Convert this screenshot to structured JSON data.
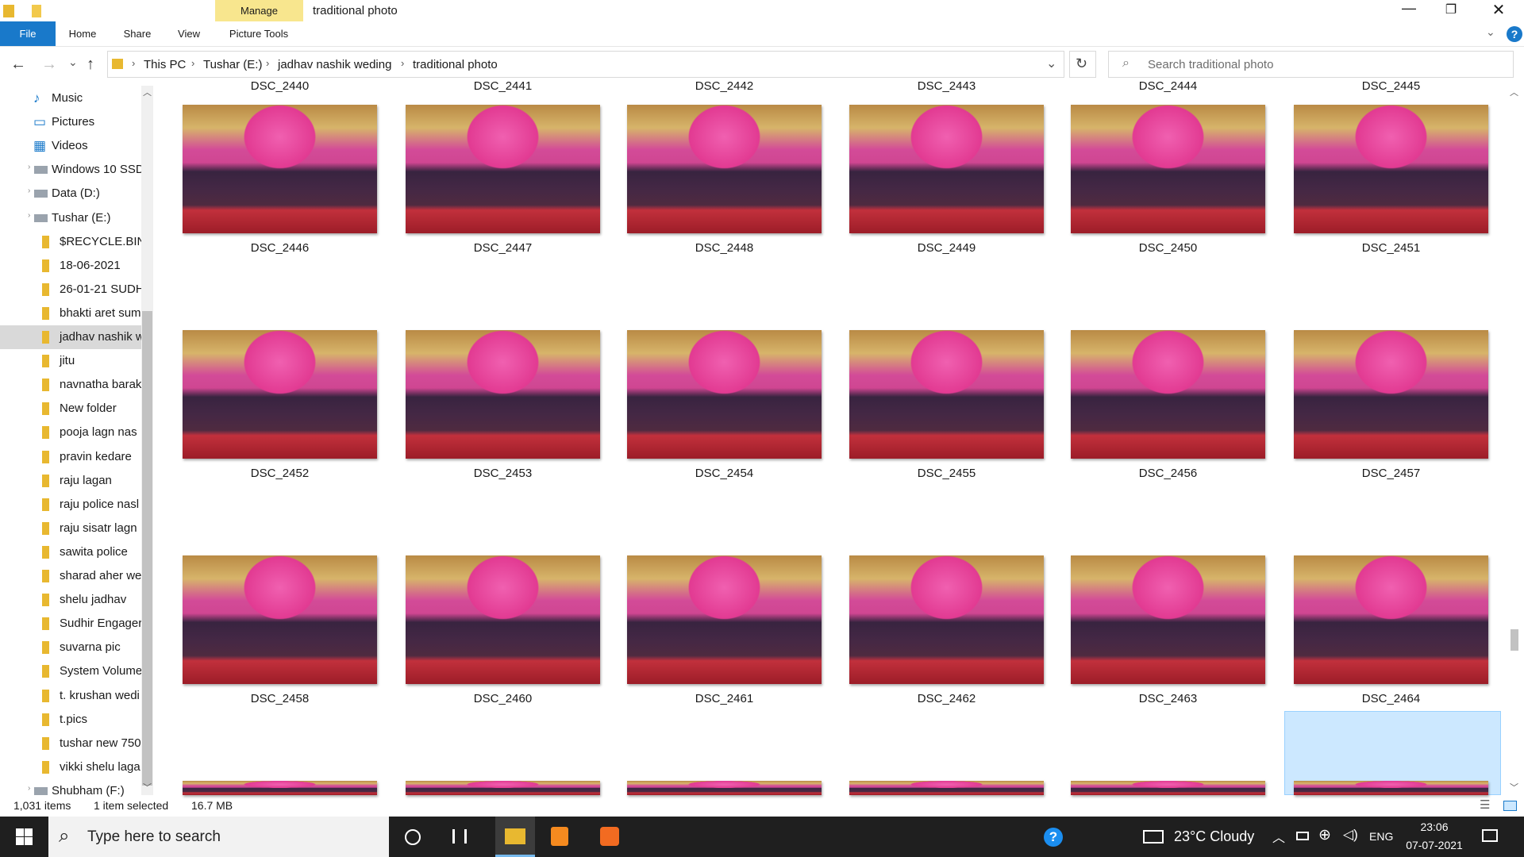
{
  "title_bar": {
    "manage": "Manage",
    "title": "traditional photo"
  },
  "ribbon": {
    "tabs": [
      "File",
      "Home",
      "Share",
      "View",
      "Picture Tools"
    ]
  },
  "address": {
    "crumbs": [
      "This PC",
      "Tushar (E:)",
      "jadhav nashik weding",
      "traditional photo"
    ],
    "search": "Search traditional photo"
  },
  "nav": [
    "Music",
    "Pictures",
    "Videos",
    "Windows 10 SSD",
    "Data (D:)",
    "Tushar (E:)",
    "$RECYCLE.BIN",
    "18-06-2021",
    "26-01-21 SUDH",
    "bhakti aret sum",
    "jadhav nashik w",
    "jitu",
    "navnatha barak",
    "New folder",
    "pooja lagn nas",
    "pravin kedare",
    "raju lagan",
    "raju police nasl",
    "raju sisatr lagn",
    "sawita police",
    "sharad aher we",
    "shelu jadhav",
    "Sudhir Engager",
    "suvarna pic",
    "System Volume",
    "t. krushan wedi",
    "t.pics",
    "tushar new 750",
    "vikki shelu laga",
    "Shubham (F:)"
  ],
  "files": {
    "above": [
      "DSC_2440",
      "DSC_2441",
      "DSC_2442",
      "DSC_2443",
      "DSC_2444",
      "DSC_2445"
    ],
    "grid": [
      "DSC_2446",
      "DSC_2447",
      "DSC_2448",
      "DSC_2449",
      "DSC_2450",
      "DSC_2451",
      "DSC_2452",
      "DSC_2453",
      "DSC_2454",
      "DSC_2455",
      "DSC_2456",
      "DSC_2457",
      "DSC_2458",
      "DSC_2460",
      "DSC_2461",
      "DSC_2462",
      "DSC_2463",
      "DSC_2464"
    ]
  },
  "status": {
    "count": "1,031 items",
    "selected": "1 item selected",
    "size": "16.7 MB"
  },
  "taskbar": {
    "search": "Type here to search",
    "weather": "23°C  Cloudy",
    "lang": "ENG",
    "time": "23:06",
    "date": "07-07-2021"
  }
}
